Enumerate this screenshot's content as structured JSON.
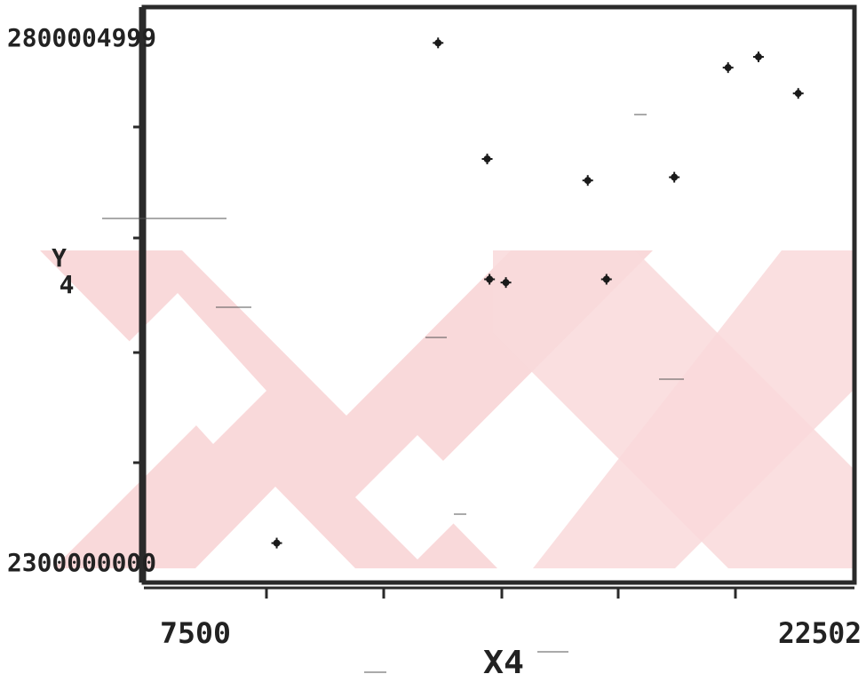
{
  "chart_data": {
    "type": "scatter",
    "title": "",
    "xlabel": "X4",
    "ylabel": "Y4",
    "xlim": [
      7500,
      22502
    ],
    "ylim": [
      2300000000,
      2800004999
    ],
    "x_tick_labels": [
      "7500",
      "22502"
    ],
    "y_tick_labels": [
      "2800004999",
      "2300000000"
    ],
    "grid": false,
    "x": [
      10150,
      13600,
      14650,
      14700,
      15050,
      16800,
      17200,
      18650,
      19800,
      20450,
      21300
    ],
    "y": [
      2323500000,
      2789000000,
      2681000000,
      2569000000,
      2566000000,
      2661000000,
      2569000000,
      2664000000,
      2766000000,
      2776000000,
      2742000000
    ],
    "marker_color": "#1a1a1a",
    "watermark_color": "#f9d9da"
  }
}
